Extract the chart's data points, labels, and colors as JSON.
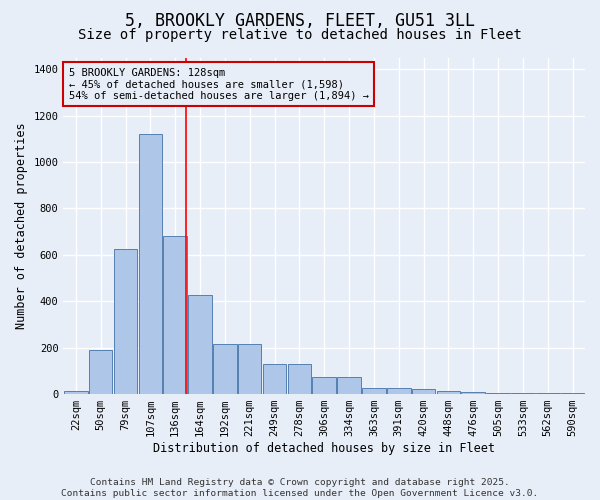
{
  "title1": "5, BROOKLY GARDENS, FLEET, GU51 3LL",
  "title2": "Size of property relative to detached houses in Fleet",
  "xlabel": "Distribution of detached houses by size in Fleet",
  "ylabel": "Number of detached properties",
  "bar_labels": [
    "22sqm",
    "50sqm",
    "79sqm",
    "107sqm",
    "136sqm",
    "164sqm",
    "192sqm",
    "221sqm",
    "249sqm",
    "278sqm",
    "306sqm",
    "334sqm",
    "363sqm",
    "391sqm",
    "420sqm",
    "448sqm",
    "476sqm",
    "505sqm",
    "533sqm",
    "562sqm",
    "590sqm"
  ],
  "bar_values": [
    15,
    190,
    625,
    1120,
    680,
    425,
    215,
    215,
    130,
    130,
    75,
    75,
    25,
    25,
    20,
    15,
    10,
    5,
    5,
    5,
    5
  ],
  "bar_color": "#aec6e8",
  "bar_edge_color": "#5580b0",
  "bg_color": "#e8eef8",
  "grid_color": "#ffffff",
  "red_line_x": 4.45,
  "annotation_box_text": "5 BROOKLY GARDENS: 128sqm\n← 45% of detached houses are smaller (1,598)\n54% of semi-detached houses are larger (1,894) →",
  "red_box_color": "#cc0000",
  "footer_text": "Contains HM Land Registry data © Crown copyright and database right 2025.\nContains public sector information licensed under the Open Government Licence v3.0.",
  "ylim": [
    0,
    1450
  ],
  "yticks": [
    0,
    200,
    400,
    600,
    800,
    1000,
    1200,
    1400
  ],
  "title1_fontsize": 12,
  "title2_fontsize": 10,
  "axis_fontsize": 8.5,
  "tick_fontsize": 7.5,
  "footer_fontsize": 6.8,
  "ann_fontsize": 7.5
}
